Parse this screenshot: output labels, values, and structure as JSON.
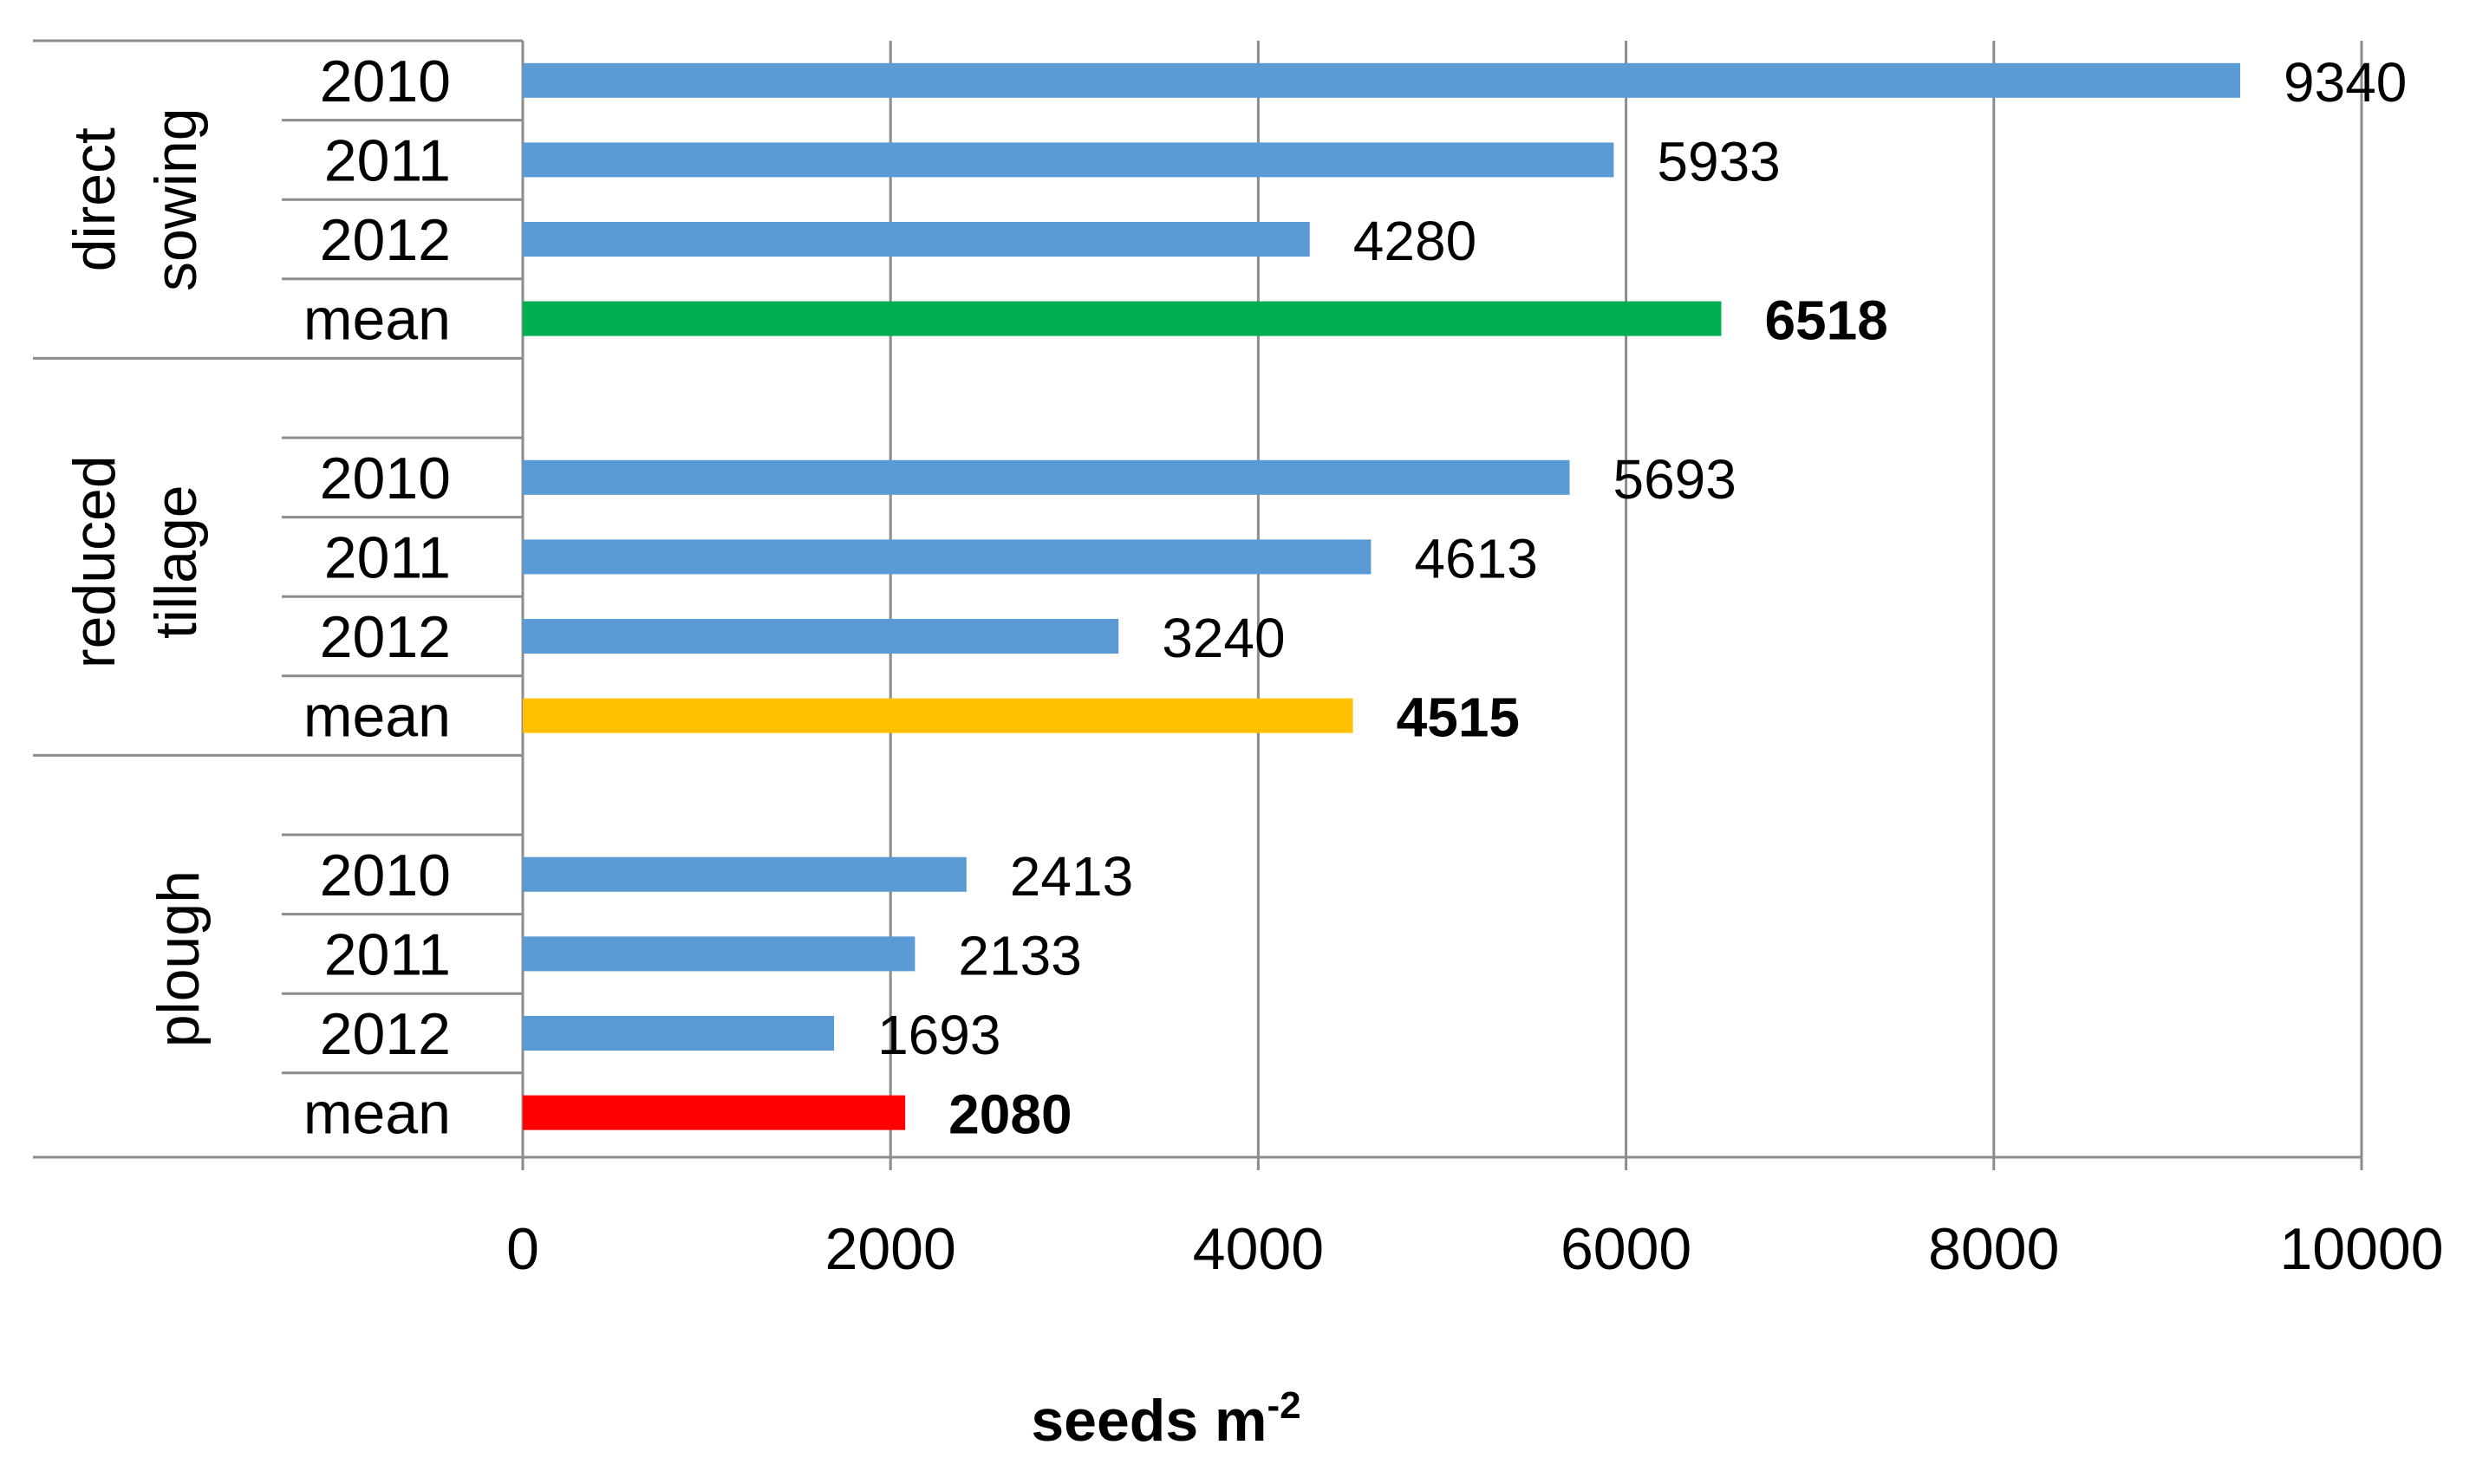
{
  "chart_data": {
    "type": "bar",
    "orientation": "horizontal",
    "title": "",
    "xlabel": "seeds m",
    "xlabel_superscript": "-2",
    "ylabel": "",
    "xlim": [
      0,
      10000
    ],
    "xticks": [
      0,
      2000,
      4000,
      6000,
      8000,
      10000
    ],
    "grid": "vertical",
    "colors": {
      "year": "#5b9bd5",
      "direct_mean": "#00b050",
      "reduced_mean": "#ffc000",
      "plough_mean": "#ff0000",
      "grid": "#8c8c8c"
    },
    "groups": [
      {
        "name": "direct sowing",
        "label_lines": [
          "direct",
          "sowing"
        ],
        "rows": [
          {
            "label": "2010",
            "value": 9340,
            "kind": "year"
          },
          {
            "label": "2011",
            "value": 5933,
            "kind": "year"
          },
          {
            "label": "2012",
            "value": 4280,
            "kind": "year"
          },
          {
            "label": "mean",
            "value": 6518,
            "kind": "mean",
            "color_key": "direct_mean"
          }
        ]
      },
      {
        "name": "reduced tillage",
        "label_lines": [
          "reduced",
          "tillage"
        ],
        "rows": [
          {
            "label": "2010",
            "value": 5693,
            "kind": "year"
          },
          {
            "label": "2011",
            "value": 4613,
            "kind": "year"
          },
          {
            "label": "2012",
            "value": 3240,
            "kind": "year"
          },
          {
            "label": "mean",
            "value": 4515,
            "kind": "mean",
            "color_key": "reduced_mean"
          }
        ]
      },
      {
        "name": "plough",
        "label_lines": [
          "plough"
        ],
        "rows": [
          {
            "label": "2010",
            "value": 2413,
            "kind": "year"
          },
          {
            "label": "2011",
            "value": 2133,
            "kind": "year"
          },
          {
            "label": "2012",
            "value": 1693,
            "kind": "year"
          },
          {
            "label": "mean",
            "value": 2080,
            "kind": "mean",
            "color_key": "plough_mean"
          }
        ]
      }
    ]
  }
}
